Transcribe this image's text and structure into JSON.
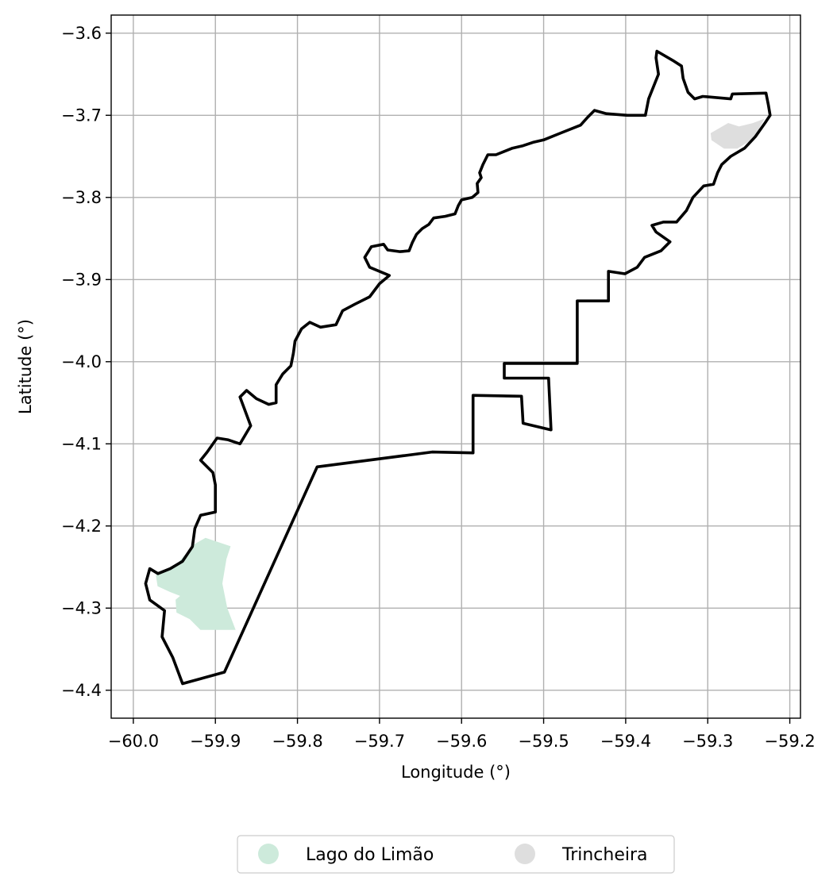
{
  "chart_data": {
    "type": "map",
    "xlabel": "Longitude (°)",
    "ylabel": "Latitude (°)",
    "xlim": [
      -60.027,
      -59.187
    ],
    "ylim": [
      -4.434,
      -3.578
    ],
    "grid": true,
    "x_ticks": [
      -60.0,
      -59.9,
      -59.8,
      -59.7,
      -59.6,
      -59.5,
      -59.4,
      -59.3,
      -59.2
    ],
    "x_tick_labels": [
      "−60.0",
      "−59.9",
      "−59.8",
      "−59.7",
      "−59.6",
      "−59.5",
      "−59.4",
      "−59.3",
      "−59.2"
    ],
    "y_ticks": [
      -3.6,
      -3.7,
      -3.8,
      -3.9,
      -4.0,
      -4.1,
      -4.2,
      -4.3,
      -4.4
    ],
    "y_tick_labels": [
      "−3.6",
      "−3.7",
      "−3.8",
      "−3.9",
      "−4.0",
      "−4.1",
      "−4.2",
      "−4.3",
      "−4.4"
    ],
    "legend_placement": "bottom-center",
    "outline": {
      "color": "#000000",
      "coords": [
        [
          -59.94,
          -4.392
        ],
        [
          -59.889,
          -4.378
        ],
        [
          -59.776,
          -4.128
        ],
        [
          -59.636,
          -4.11
        ],
        [
          -59.586,
          -4.111
        ],
        [
          -59.586,
          -4.041
        ],
        [
          -59.527,
          -4.042
        ],
        [
          -59.525,
          -4.075
        ],
        [
          -59.491,
          -4.083
        ],
        [
          -59.494,
          -4.02
        ],
        [
          -59.548,
          -4.02
        ],
        [
          -59.548,
          -4.002
        ],
        [
          -59.459,
          -4.002
        ],
        [
          -59.459,
          -3.926
        ],
        [
          -59.421,
          -3.926
        ],
        [
          -59.421,
          -3.89
        ],
        [
          -59.401,
          -3.893
        ],
        [
          -59.386,
          -3.885
        ],
        [
          -59.377,
          -3.873
        ],
        [
          -59.357,
          -3.865
        ],
        [
          -59.346,
          -3.854
        ],
        [
          -59.363,
          -3.842
        ],
        [
          -59.368,
          -3.834
        ],
        [
          -59.354,
          -3.83
        ],
        [
          -59.338,
          -3.83
        ],
        [
          -59.326,
          -3.816
        ],
        [
          -59.318,
          -3.8
        ],
        [
          -59.305,
          -3.786
        ],
        [
          -59.293,
          -3.784
        ],
        [
          -59.288,
          -3.77
        ],
        [
          -59.283,
          -3.76
        ],
        [
          -59.272,
          -3.75
        ],
        [
          -59.255,
          -3.74
        ],
        [
          -59.242,
          -3.726
        ],
        [
          -59.23,
          -3.709
        ],
        [
          -59.224,
          -3.7
        ],
        [
          -59.226,
          -3.688
        ],
        [
          -59.229,
          -3.673
        ],
        [
          -59.27,
          -3.674
        ],
        [
          -59.272,
          -3.68
        ],
        [
          -59.306,
          -3.677
        ],
        [
          -59.316,
          -3.68
        ],
        [
          -59.324,
          -3.672
        ],
        [
          -59.33,
          -3.655
        ],
        [
          -59.332,
          -3.64
        ],
        [
          -59.343,
          -3.633
        ],
        [
          -59.362,
          -3.622
        ],
        [
          -59.363,
          -3.63
        ],
        [
          -59.36,
          -3.65
        ],
        [
          -59.372,
          -3.68
        ],
        [
          -59.376,
          -3.7
        ],
        [
          -59.398,
          -3.7
        ],
        [
          -59.424,
          -3.698
        ],
        [
          -59.438,
          -3.694
        ],
        [
          -59.446,
          -3.702
        ],
        [
          -59.455,
          -3.712
        ],
        [
          -59.48,
          -3.722
        ],
        [
          -59.5,
          -3.73
        ],
        [
          -59.513,
          -3.733
        ],
        [
          -59.525,
          -3.737
        ],
        [
          -59.538,
          -3.74
        ],
        [
          -59.548,
          -3.744
        ],
        [
          -59.558,
          -3.748
        ],
        [
          -59.568,
          -3.748
        ],
        [
          -59.574,
          -3.76
        ],
        [
          -59.578,
          -3.77
        ],
        [
          -59.576,
          -3.776
        ],
        [
          -59.581,
          -3.783
        ],
        [
          -59.58,
          -3.794
        ],
        [
          -59.587,
          -3.8
        ],
        [
          -59.6,
          -3.803
        ],
        [
          -59.604,
          -3.81
        ],
        [
          -59.608,
          -3.82
        ],
        [
          -59.62,
          -3.823
        ],
        [
          -59.634,
          -3.825
        ],
        [
          -59.64,
          -3.833
        ],
        [
          -59.648,
          -3.838
        ],
        [
          -59.655,
          -3.845
        ],
        [
          -59.66,
          -3.855
        ],
        [
          -59.664,
          -3.865
        ],
        [
          -59.675,
          -3.866
        ],
        [
          -59.69,
          -3.864
        ],
        [
          -59.695,
          -3.857
        ],
        [
          -59.71,
          -3.86
        ],
        [
          -59.718,
          -3.873
        ],
        [
          -59.712,
          -3.885
        ],
        [
          -59.688,
          -3.895
        ],
        [
          -59.7,
          -3.905
        ],
        [
          -59.712,
          -3.921
        ],
        [
          -59.73,
          -3.93
        ],
        [
          -59.745,
          -3.938
        ],
        [
          -59.753,
          -3.955
        ],
        [
          -59.772,
          -3.958
        ],
        [
          -59.785,
          -3.952
        ],
        [
          -59.795,
          -3.96
        ],
        [
          -59.803,
          -3.975
        ],
        [
          -59.805,
          -3.99
        ],
        [
          -59.808,
          -4.005
        ],
        [
          -59.818,
          -4.015
        ],
        [
          -59.826,
          -4.028
        ],
        [
          -59.826,
          -4.05
        ],
        [
          -59.835,
          -4.052
        ],
        [
          -59.85,
          -4.045
        ],
        [
          -59.862,
          -4.035
        ],
        [
          -59.87,
          -4.043
        ],
        [
          -59.857,
          -4.078
        ],
        [
          -59.87,
          -4.1
        ],
        [
          -59.885,
          -4.095
        ],
        [
          -59.898,
          -4.093
        ],
        [
          -59.91,
          -4.11
        ],
        [
          -59.918,
          -4.12
        ],
        [
          -59.903,
          -4.135
        ],
        [
          -59.9,
          -4.15
        ],
        [
          -59.9,
          -4.183
        ],
        [
          -59.918,
          -4.187
        ],
        [
          -59.925,
          -4.203
        ],
        [
          -59.928,
          -4.225
        ],
        [
          -59.94,
          -4.243
        ],
        [
          -59.955,
          -4.252
        ],
        [
          -59.97,
          -4.258
        ],
        [
          -59.98,
          -4.252
        ],
        [
          -59.985,
          -4.27
        ],
        [
          -59.98,
          -4.29
        ],
        [
          -59.962,
          -4.303
        ],
        [
          -59.965,
          -4.335
        ],
        [
          -59.952,
          -4.36
        ],
        [
          -59.94,
          -4.392
        ]
      ]
    },
    "series": [
      {
        "name": "Lago do Limão",
        "color": "#cdeadb",
        "coords": [
          [
            -59.926,
            -4.223
          ],
          [
            -59.912,
            -4.215
          ],
          [
            -59.882,
            -4.225
          ],
          [
            -59.887,
            -4.24
          ],
          [
            -59.892,
            -4.27
          ],
          [
            -59.886,
            -4.3
          ],
          [
            -59.876,
            -4.326
          ],
          [
            -59.918,
            -4.326
          ],
          [
            -59.931,
            -4.313
          ],
          [
            -59.947,
            -4.305
          ],
          [
            -59.948,
            -4.29
          ],
          [
            -59.942,
            -4.285
          ],
          [
            -59.955,
            -4.28
          ],
          [
            -59.97,
            -4.273
          ],
          [
            -59.972,
            -4.26
          ],
          [
            -59.952,
            -4.253
          ]
        ]
      },
      {
        "name": "Trincheira",
        "color": "#dedede",
        "coords": [
          [
            -59.296,
            -3.722
          ],
          [
            -59.275,
            -3.71
          ],
          [
            -59.262,
            -3.714
          ],
          [
            -59.245,
            -3.71
          ],
          [
            -59.232,
            -3.705
          ],
          [
            -59.244,
            -3.728
          ],
          [
            -59.264,
            -3.74
          ],
          [
            -59.28,
            -3.74
          ],
          [
            -59.295,
            -3.73
          ]
        ]
      }
    ]
  }
}
